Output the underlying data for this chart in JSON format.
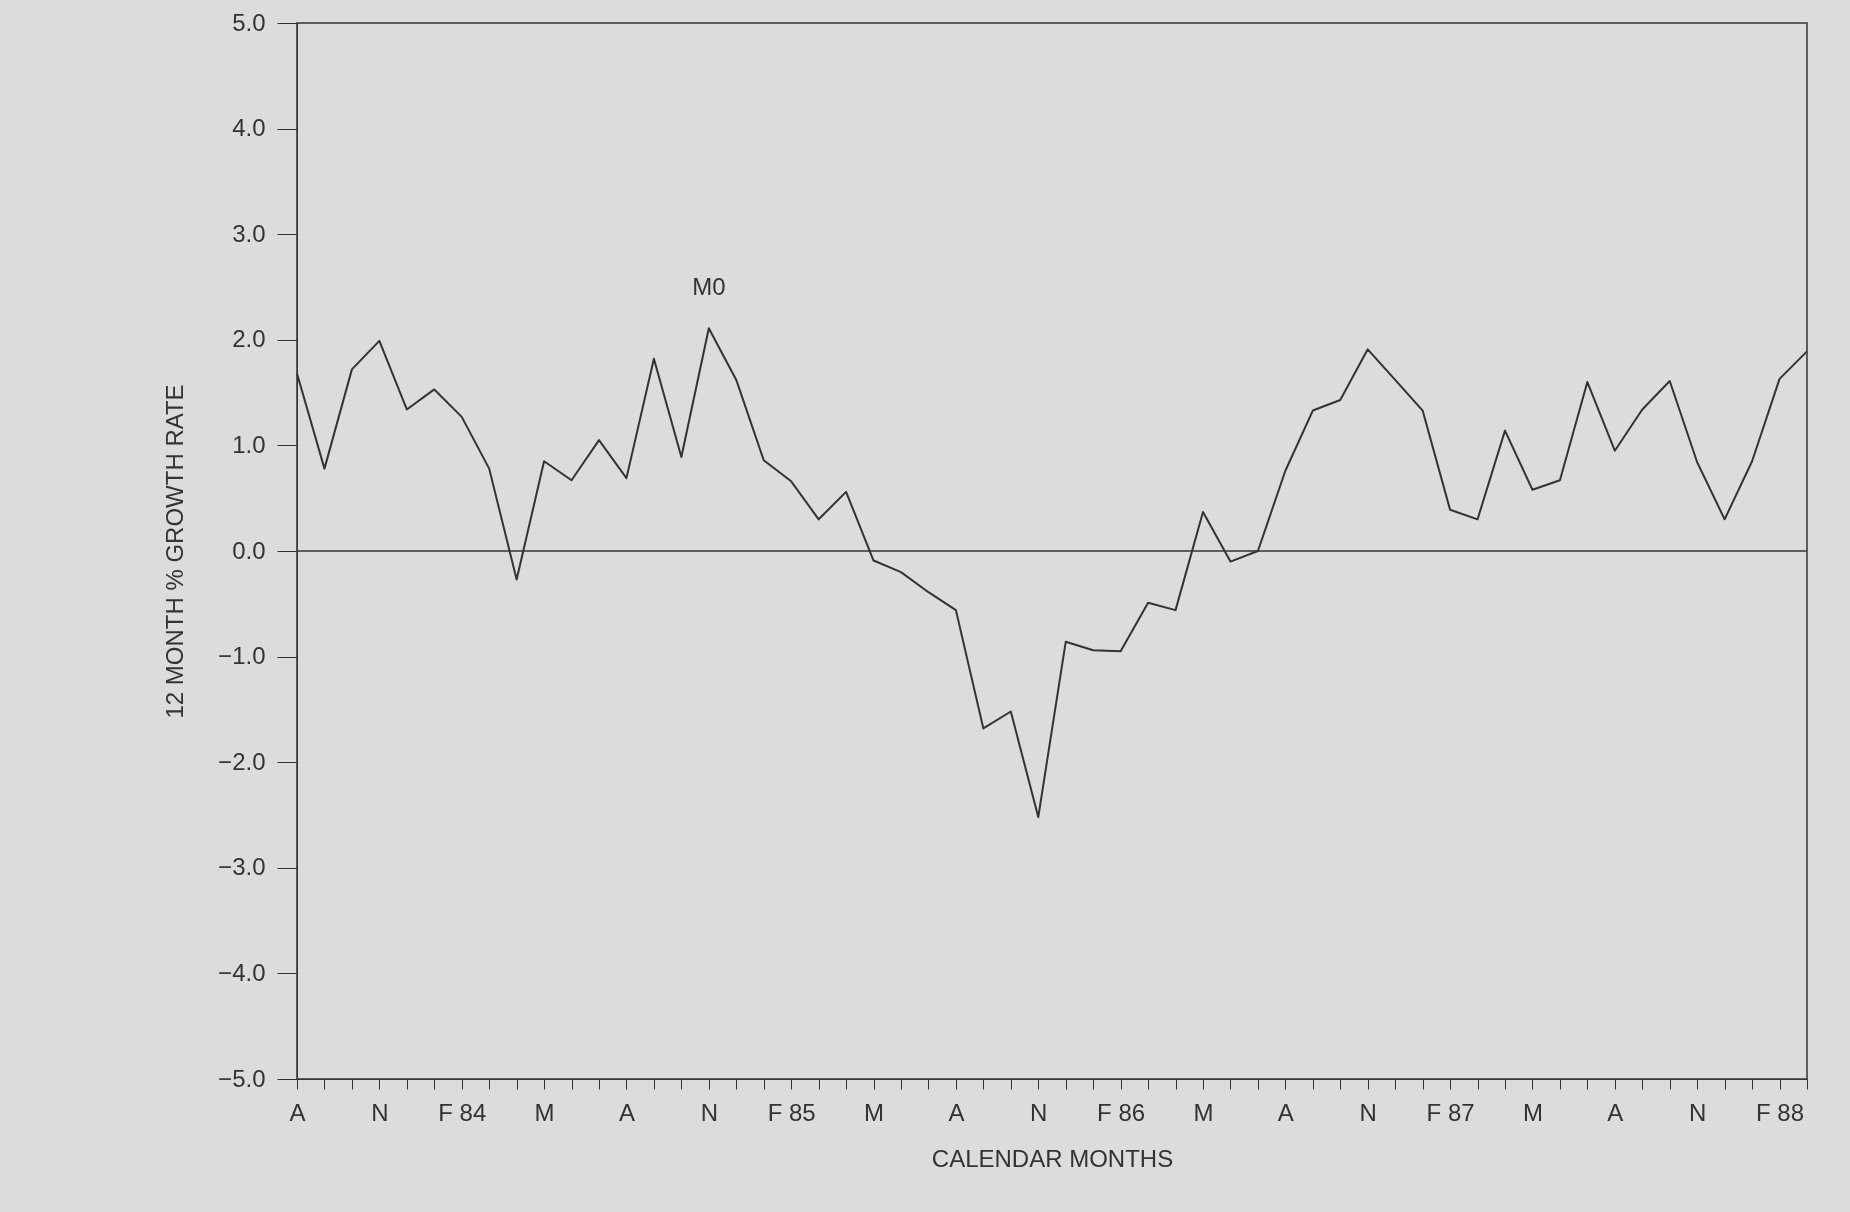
{
  "chart_data": {
    "type": "line",
    "xlabel": "CALENDAR MONTHS",
    "ylabel": "12 MONTH % GROWTH RATE",
    "categories": [
      "A",
      null,
      null,
      "N",
      null,
      null,
      "F 84",
      null,
      null,
      "M",
      null,
      null,
      "A",
      null,
      null,
      "N",
      null,
      null,
      "F 85",
      null,
      null,
      "M",
      null,
      null,
      "A",
      null,
      null,
      "N",
      null,
      null,
      "F 86",
      null,
      null,
      "M",
      null,
      null,
      "A",
      null,
      null,
      "N",
      null,
      null,
      "F 87",
      null,
      null,
      "M",
      null,
      null,
      "A",
      null,
      null,
      "N",
      null,
      null,
      "F 88",
      null
    ],
    "series": [
      {
        "name": "M0",
        "color": "#333333",
        "values": [
          1.68,
          0.78,
          1.72,
          1.99,
          1.34,
          1.53,
          1.27,
          0.78,
          -0.27,
          0.85,
          0.67,
          1.05,
          0.69,
          1.82,
          0.89,
          2.11,
          1.62,
          0.86,
          0.66,
          0.3,
          0.56,
          -0.09,
          -0.2,
          -0.39,
          -0.56,
          -1.68,
          -1.52,
          -2.52,
          -0.86,
          -0.94,
          -0.95,
          -0.49,
          -0.56,
          0.37,
          -0.1,
          0.0,
          0.76,
          1.33,
          1.43,
          1.91,
          1.62,
          1.33,
          0.39,
          0.3,
          1.14,
          0.58,
          0.67,
          1.6,
          0.95,
          1.34,
          1.61,
          0.84,
          0.3,
          0.85,
          1.63,
          1.89
        ]
      }
    ],
    "ylim": [
      -5,
      5
    ],
    "yticks": [
      {
        "value": -5,
        "label": "−5.0"
      },
      {
        "value": -4,
        "label": "−4.0"
      },
      {
        "value": -3,
        "label": "−3.0"
      },
      {
        "value": -2,
        "label": "−2.0"
      },
      {
        "value": -1,
        "label": "−1.0"
      },
      {
        "value": 0,
        "label": "0.0"
      },
      {
        "value": 1,
        "label": "1.0"
      },
      {
        "value": 2,
        "label": "2.0"
      },
      {
        "value": 3,
        "label": "3.0"
      },
      {
        "value": 4,
        "label": "4.0"
      },
      {
        "value": 5,
        "label": "5.0"
      }
    ],
    "ref_lines": [
      {
        "axis": "y",
        "value": 0,
        "color": "#333333"
      }
    ],
    "grid": false,
    "marker": "none",
    "line_style": "solid"
  }
}
